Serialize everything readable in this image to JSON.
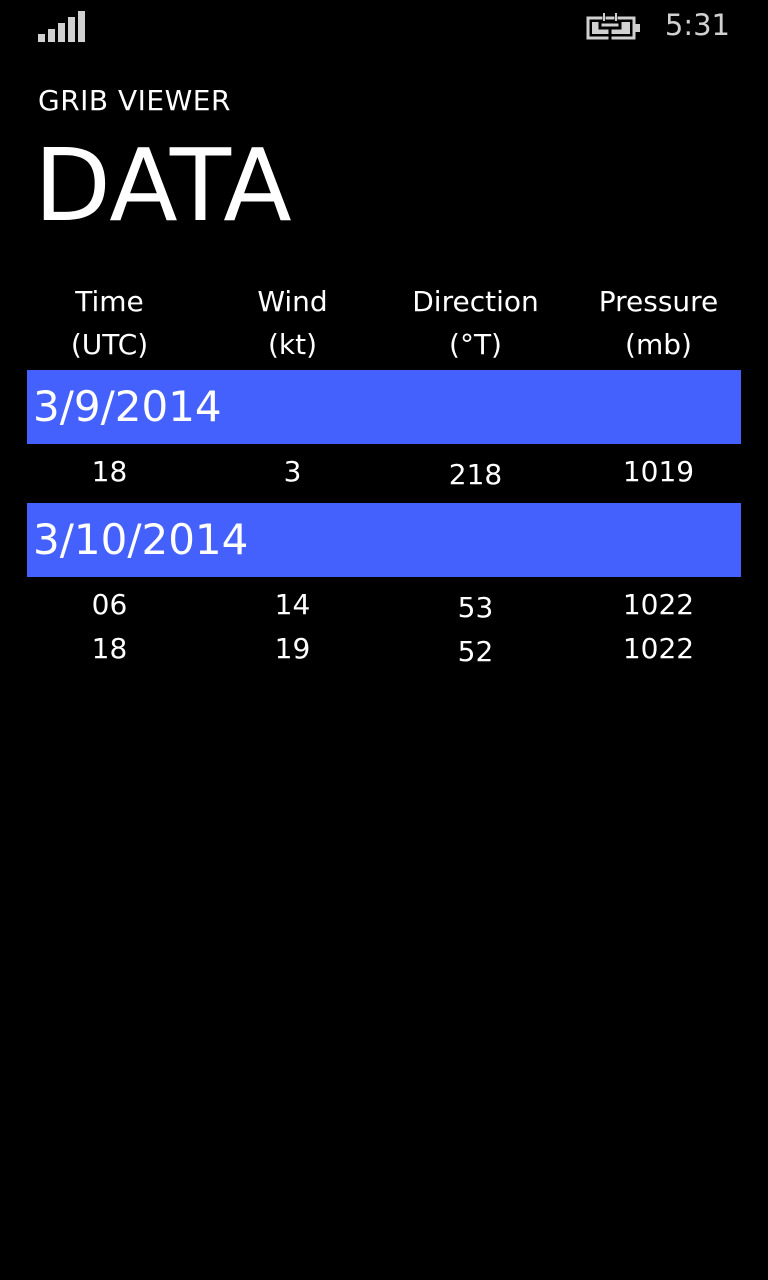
{
  "status_bar": {
    "time": "5:31",
    "signal_icon": "signal-strength-icon",
    "battery_icon": "battery-charging-icon"
  },
  "app": {
    "title": "GRIB VIEWER"
  },
  "page": {
    "title": "DATA"
  },
  "table": {
    "columns": [
      {
        "label": "Time",
        "unit": "(UTC)"
      },
      {
        "label": "Wind",
        "unit": "(kt)"
      },
      {
        "label": "Direction",
        "unit": "(°T)"
      },
      {
        "label": "Pressure",
        "unit": "(mb)"
      }
    ],
    "groups": [
      {
        "date": "3/9/2014",
        "rows": [
          {
            "time": "18",
            "wind": "3",
            "direction": "218",
            "pressure": "1019"
          }
        ]
      },
      {
        "date": "3/10/2014",
        "rows": [
          {
            "time": "06",
            "wind": "14",
            "direction": "53",
            "pressure": "1022"
          },
          {
            "time": "18",
            "wind": "19",
            "direction": "52",
            "pressure": "1022"
          }
        ]
      }
    ]
  },
  "colors": {
    "background": "#000000",
    "accent": "#4561fd",
    "text": "#ffffff"
  }
}
